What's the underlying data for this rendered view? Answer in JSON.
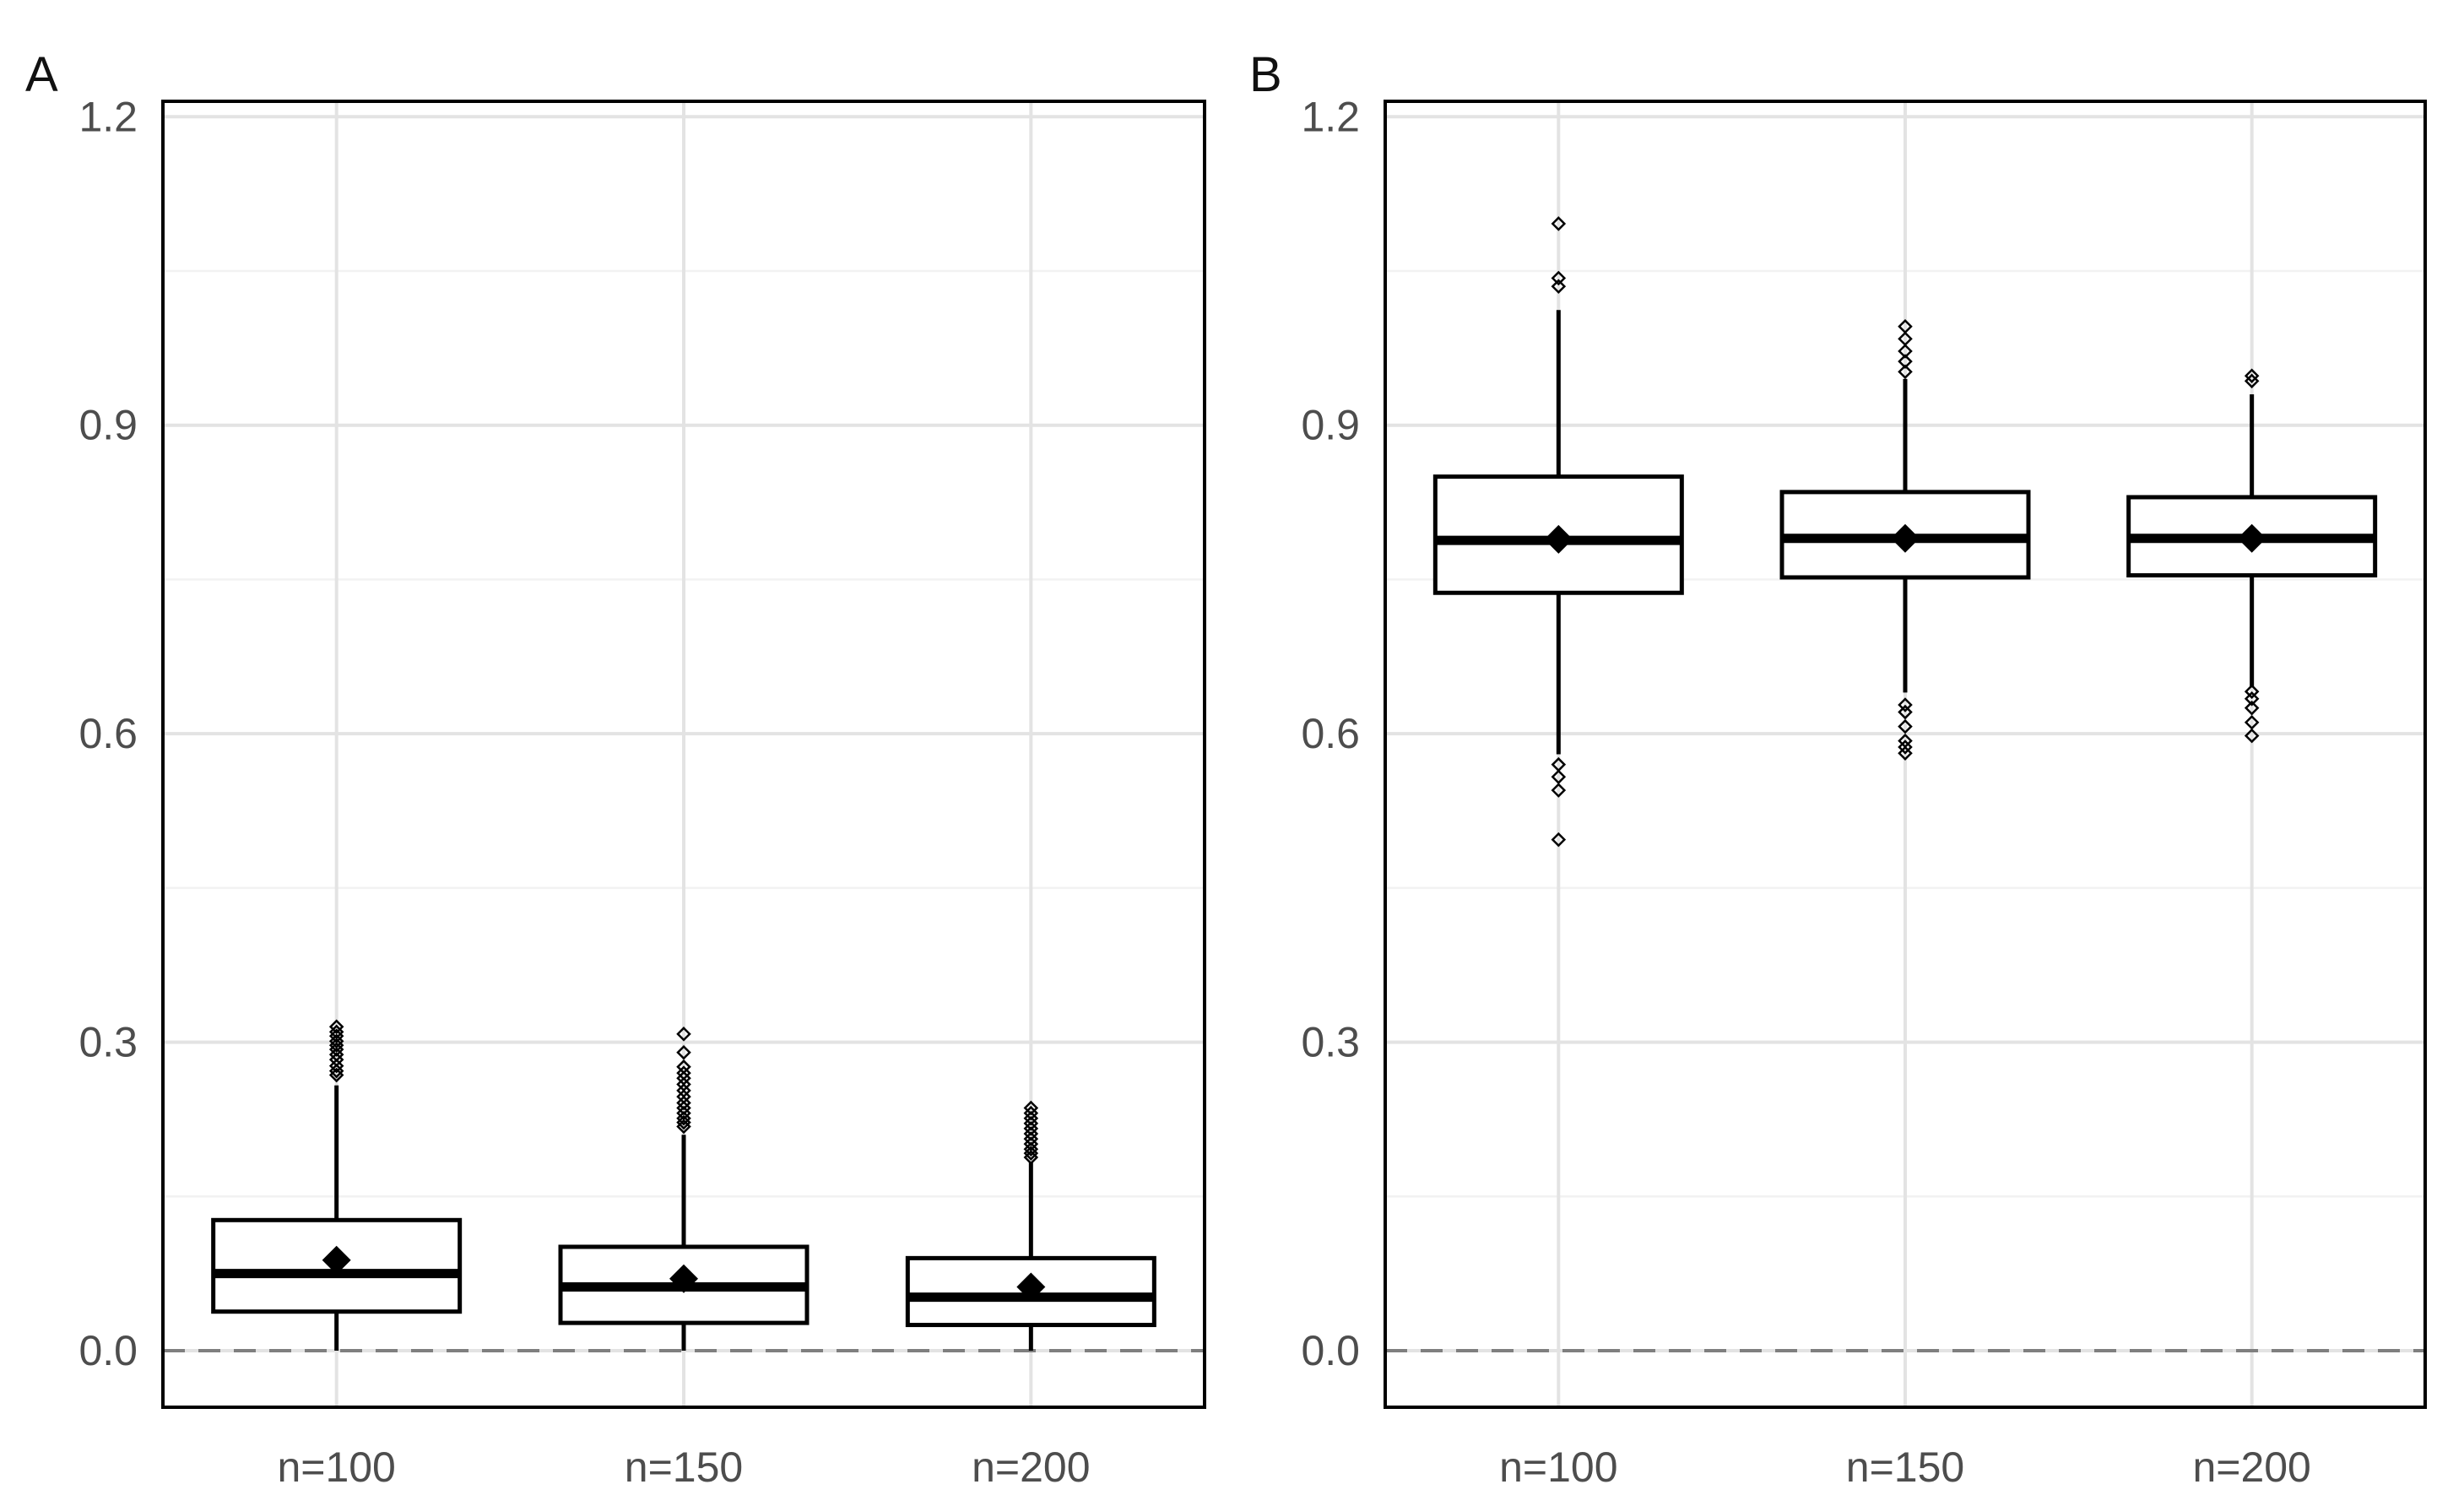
{
  "chart_data": [
    {
      "type": "boxplot",
      "panel_label": "A",
      "categories": [
        "n=100",
        "n=150",
        "n=200"
      ],
      "y_ticks": [
        "0.0",
        "0.3",
        "0.6",
        "0.9",
        "1.2"
      ],
      "ylim": [
        -0.055,
        1.215
      ],
      "reference_line": 0.0,
      "grid": true,
      "boxes": [
        {
          "q1": 0.038,
          "median": 0.075,
          "q3": 0.127,
          "whisker_low": 0.0,
          "whisker_high": 0.258,
          "mean": 0.088,
          "outliers": [
            0.268,
            0.272,
            0.277,
            0.283,
            0.288,
            0.293,
            0.297,
            0.301,
            0.306,
            0.31,
            0.315
          ]
        },
        {
          "q1": 0.027,
          "median": 0.062,
          "q3": 0.101,
          "whisker_low": 0.0,
          "whisker_high": 0.21,
          "mean": 0.07,
          "outliers": [
            0.218,
            0.222,
            0.226,
            0.231,
            0.236,
            0.241,
            0.247,
            0.253,
            0.259,
            0.265,
            0.27,
            0.276,
            0.29,
            0.308
          ]
        },
        {
          "q1": 0.025,
          "median": 0.052,
          "q3": 0.09,
          "whisker_low": 0.0,
          "whisker_high": 0.183,
          "mean": 0.062,
          "outliers": [
            0.188,
            0.192,
            0.196,
            0.201,
            0.206,
            0.211,
            0.216,
            0.221,
            0.226,
            0.231,
            0.236
          ]
        }
      ]
    },
    {
      "type": "boxplot",
      "panel_label": "B",
      "categories": [
        "n=100",
        "n=150",
        "n=200"
      ],
      "y_ticks": [
        "0.0",
        "0.3",
        "0.6",
        "0.9",
        "1.2"
      ],
      "ylim": [
        -0.055,
        1.215
      ],
      "reference_line": 0.0,
      "grid": true,
      "boxes": [
        {
          "q1": 0.737,
          "median": 0.788,
          "q3": 0.85,
          "whisker_low": 0.58,
          "whisker_high": 1.012,
          "mean": 0.789,
          "outliers": [
            0.497,
            0.545,
            0.558,
            0.57,
            1.035,
            1.043,
            1.096
          ]
        },
        {
          "q1": 0.752,
          "median": 0.79,
          "q3": 0.835,
          "whisker_low": 0.64,
          "whisker_high": 0.945,
          "mean": 0.79,
          "outliers": [
            0.581,
            0.587,
            0.593,
            0.607,
            0.621,
            0.628,
            0.952,
            0.962,
            0.972,
            0.984,
            0.996
          ]
        },
        {
          "q1": 0.754,
          "median": 0.79,
          "q3": 0.83,
          "whisker_low": 0.645,
          "whisker_high": 0.93,
          "mean": 0.79,
          "outliers": [
            0.598,
            0.611,
            0.625,
            0.634,
            0.641,
            0.943,
            0.948
          ]
        }
      ]
    }
  ]
}
